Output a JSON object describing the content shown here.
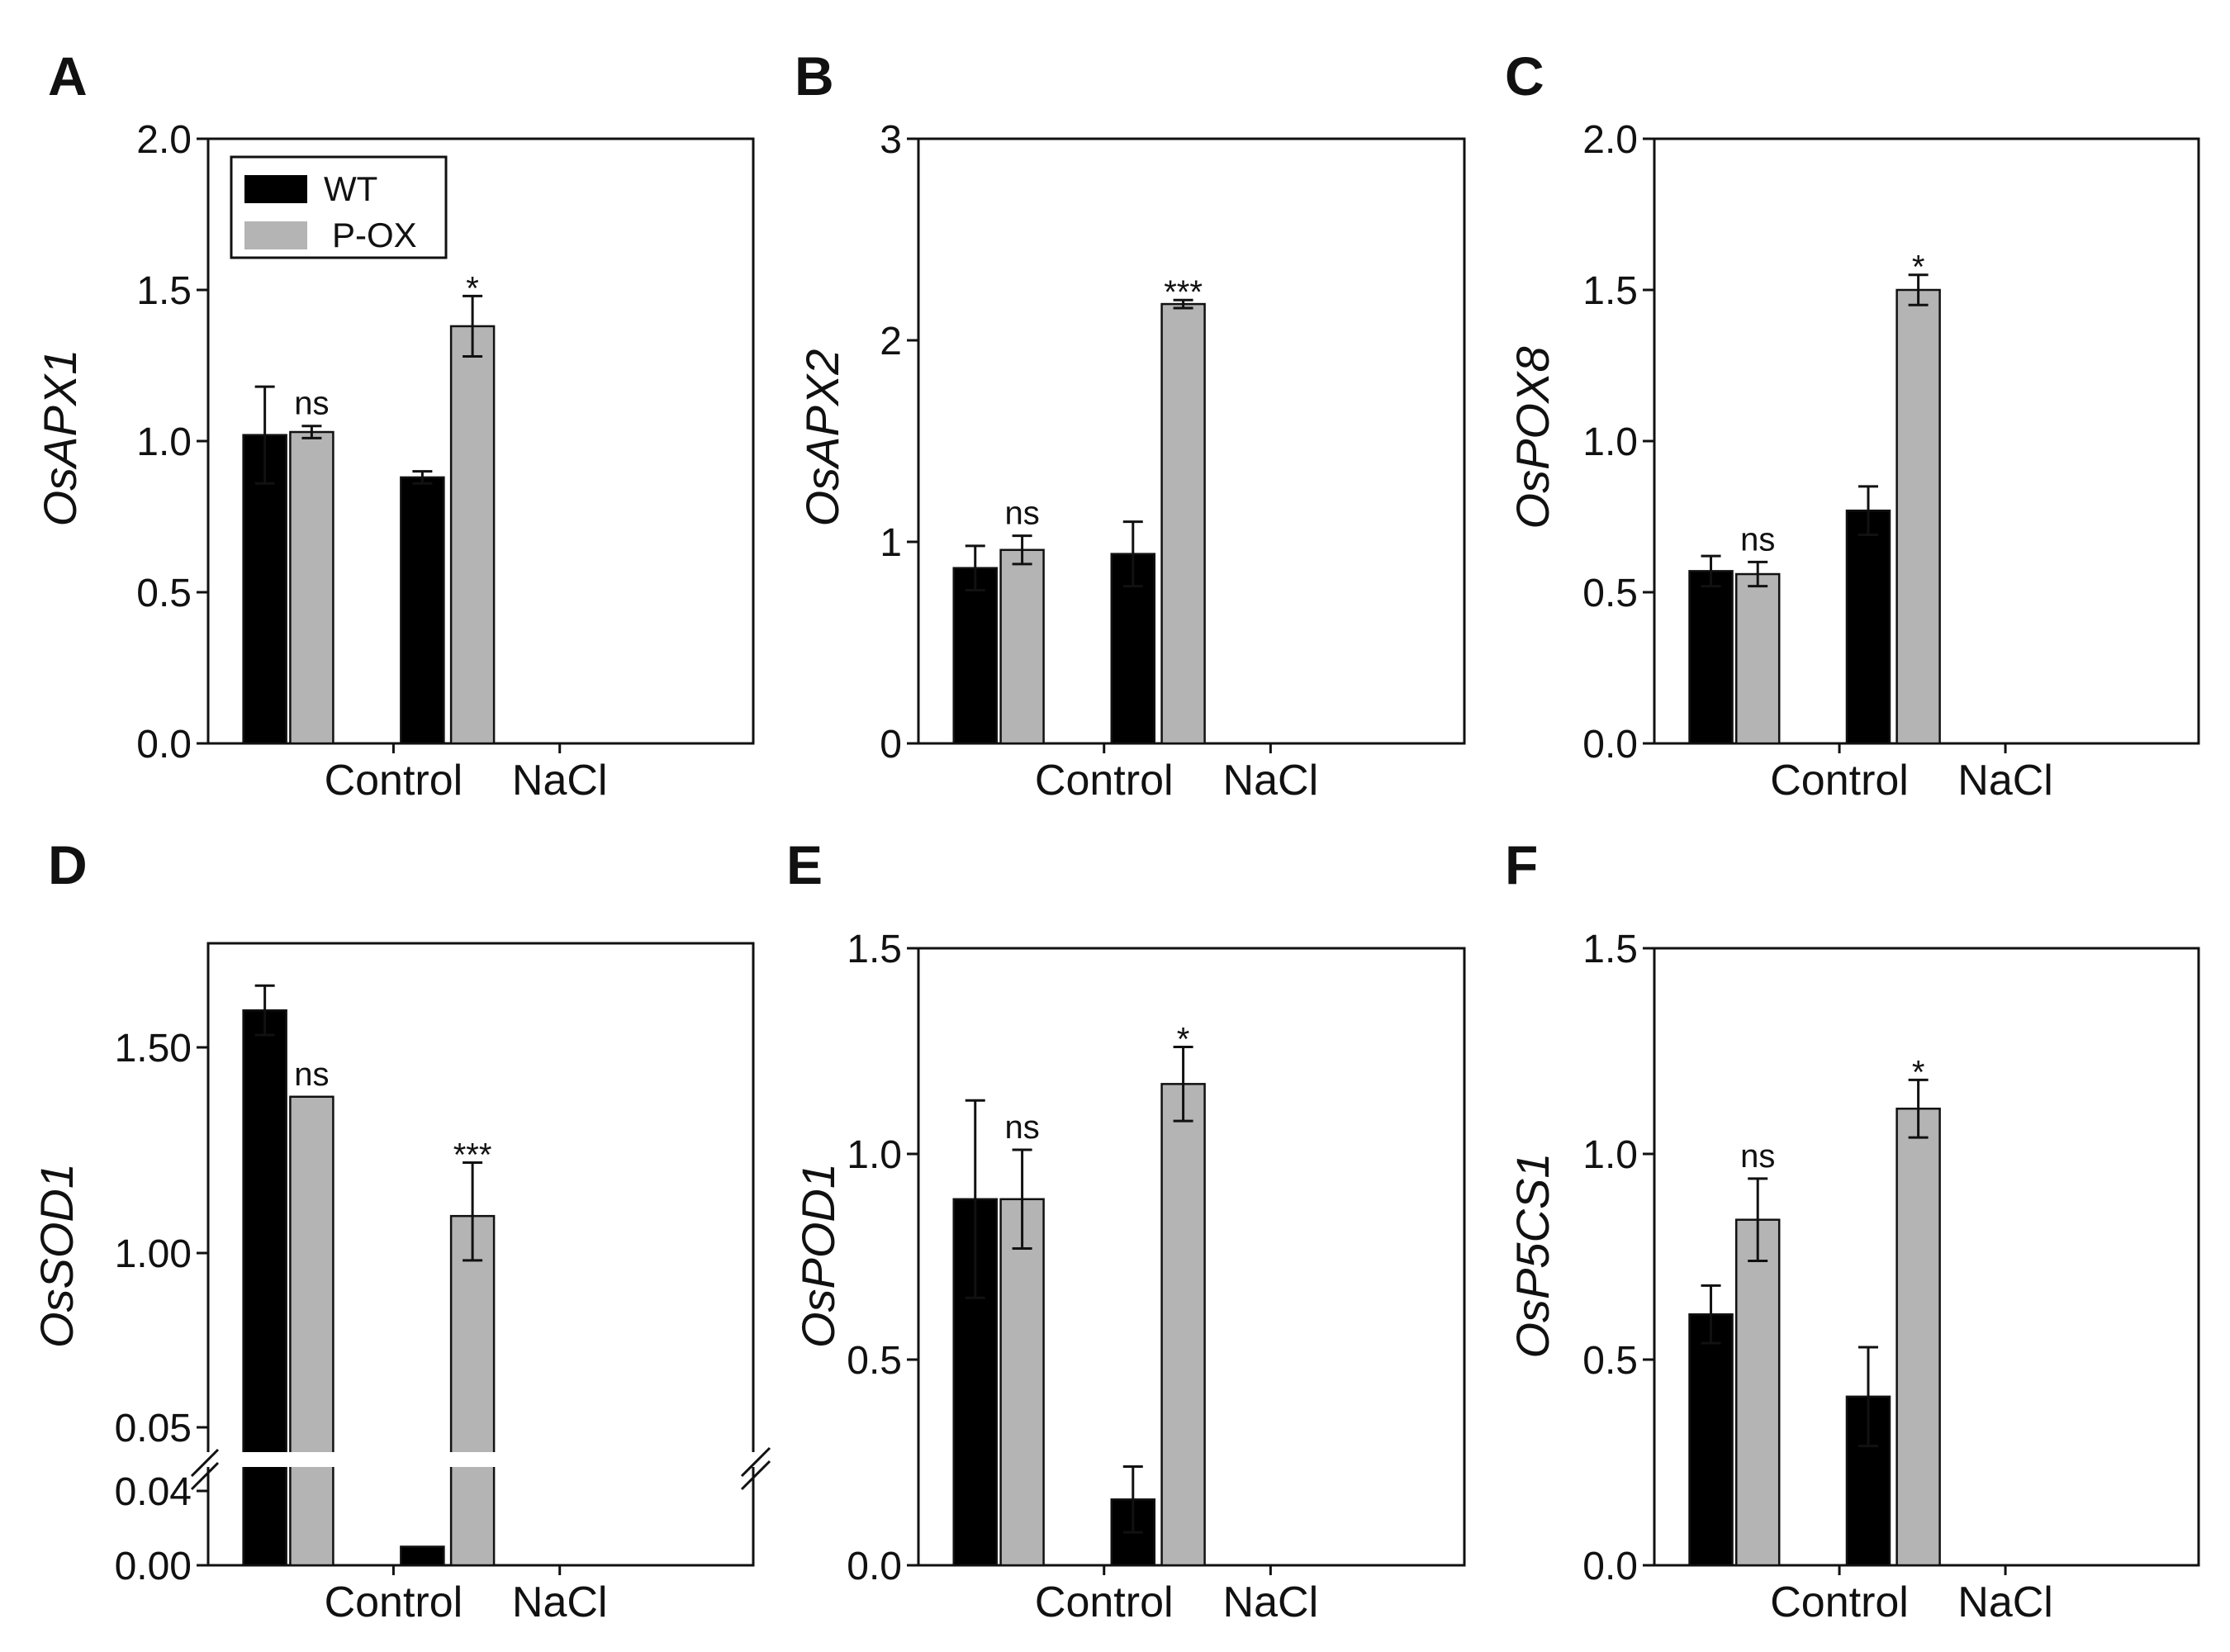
{
  "figure": {
    "legend": {
      "entries": [
        {
          "name": "WT",
          "color": "#000000"
        },
        {
          "name": "P-OX",
          "color": "#b4b4b4"
        }
      ]
    }
  },
  "chart_data": [
    {
      "type": "bar",
      "panel": "A",
      "ylabel": "OsAPX1",
      "categories": [
        "Control",
        "NaCl"
      ],
      "ylim": [
        0,
        2.0
      ],
      "yticks": [
        "0.0",
        "0.5",
        "1.0",
        "1.5",
        "2.0"
      ],
      "series": [
        {
          "name": "WT",
          "values": [
            1.02,
            0.88
          ],
          "errors": [
            0.16,
            0.02
          ]
        },
        {
          "name": "P-OX",
          "values": [
            1.03,
            1.38
          ],
          "errors": [
            0.02,
            0.1
          ]
        }
      ],
      "significance": [
        "ns",
        "*"
      ]
    },
    {
      "type": "bar",
      "panel": "B",
      "ylabel": "OsAPX2",
      "categories": [
        "Control",
        "NaCl"
      ],
      "ylim": [
        0,
        3
      ],
      "yticks": [
        "0",
        "1",
        "2",
        "3"
      ],
      "series": [
        {
          "name": "WT",
          "values": [
            0.87,
            0.94
          ],
          "errors": [
            0.11,
            0.16
          ]
        },
        {
          "name": "P-OX",
          "values": [
            0.96,
            2.18
          ],
          "errors": [
            0.07,
            0.02
          ]
        }
      ],
      "significance": [
        "ns",
        "***"
      ]
    },
    {
      "type": "bar",
      "panel": "C",
      "ylabel": "OsPOX8",
      "categories": [
        "Control",
        "NaCl"
      ],
      "ylim": [
        0,
        2.0
      ],
      "yticks": [
        "0.0",
        "0.5",
        "1.0",
        "1.5",
        "2.0"
      ],
      "series": [
        {
          "name": "WT",
          "values": [
            0.57,
            0.77
          ],
          "errors": [
            0.05,
            0.08
          ]
        },
        {
          "name": "P-OX",
          "values": [
            0.56,
            1.5
          ],
          "errors": [
            0.04,
            0.05
          ]
        }
      ],
      "significance": [
        "ns",
        "*"
      ]
    },
    {
      "type": "bar",
      "panel": "D",
      "ylabel": "OsSOD1",
      "categories": [
        "Control",
        "NaCl"
      ],
      "broken_axis": true,
      "yticks": [
        "0.00",
        "0.04",
        "0.05",
        "1.00",
        "1.50"
      ],
      "series": [
        {
          "name": "WT",
          "values": [
            1.59,
            0.01
          ],
          "errors": [
            0.06,
            0.0
          ]
        },
        {
          "name": "P-OX",
          "values": [
            1.38,
            1.09
          ],
          "errors": [
            0.0,
            0.13
          ]
        }
      ],
      "significance": [
        "ns",
        "***"
      ]
    },
    {
      "type": "bar",
      "panel": "E",
      "ylabel": "OsPOD1",
      "categories": [
        "Control",
        "NaCl"
      ],
      "ylim": [
        0,
        1.5
      ],
      "yticks": [
        "0.0",
        "0.5",
        "1.0",
        "1.5"
      ],
      "series": [
        {
          "name": "WT",
          "values": [
            0.89,
            0.16
          ],
          "errors": [
            0.24,
            0.08
          ]
        },
        {
          "name": "P-OX",
          "values": [
            0.89,
            1.17
          ],
          "errors": [
            0.12,
            0.09
          ]
        }
      ],
      "significance": [
        "ns",
        "*"
      ]
    },
    {
      "type": "bar",
      "panel": "F",
      "ylabel": "OsP5CS1",
      "categories": [
        "Control",
        "NaCl"
      ],
      "ylim": [
        0,
        1.5
      ],
      "yticks": [
        "0.0",
        "0.5",
        "1.0",
        "1.5"
      ],
      "series": [
        {
          "name": "WT",
          "values": [
            0.61,
            0.41
          ],
          "errors": [
            0.07,
            0.12
          ]
        },
        {
          "name": "P-OX",
          "values": [
            0.84,
            1.11
          ],
          "errors": [
            0.1,
            0.07
          ]
        }
      ],
      "significance": [
        "ns",
        "*"
      ]
    }
  ]
}
